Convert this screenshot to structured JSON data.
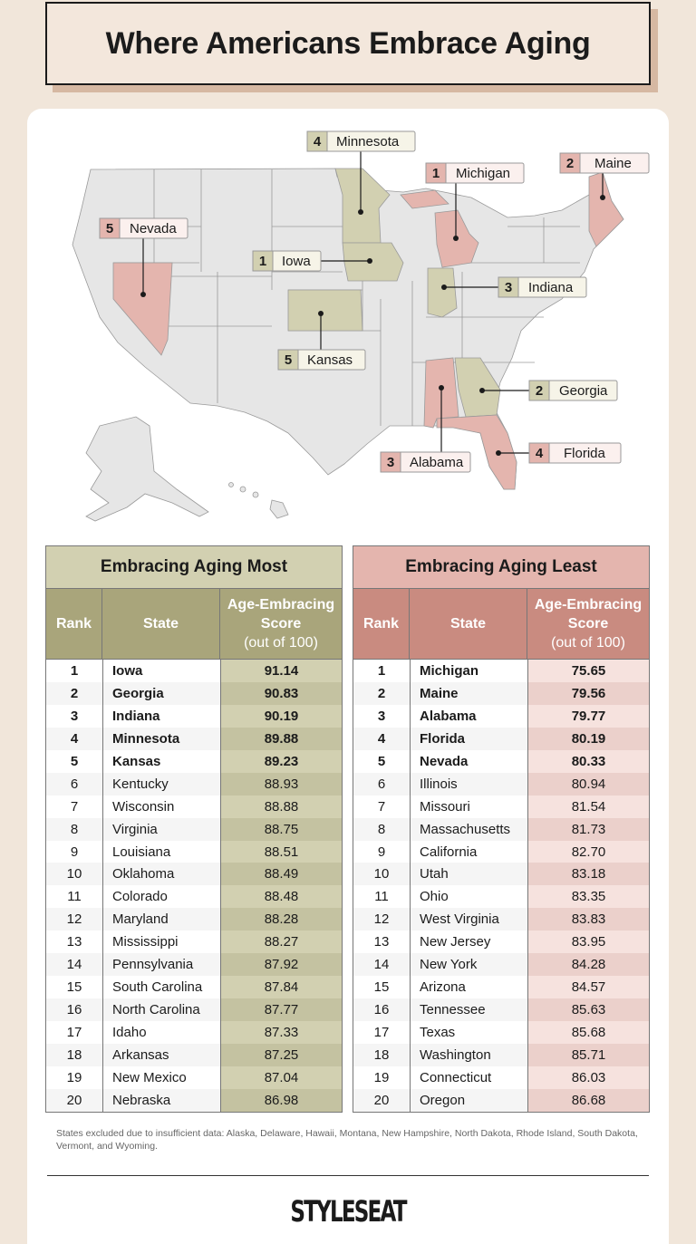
{
  "title": "Where Americans Embrace Aging",
  "colors": {
    "most": "#d2d0b1",
    "least": "#e4b5ae",
    "map_base": "#e6e6e6"
  },
  "map_labels": {
    "minnesota": {
      "rank": "4",
      "name": "Minnesota"
    },
    "michigan": {
      "rank": "1",
      "name": "Michigan"
    },
    "maine": {
      "rank": "2",
      "name": "Maine"
    },
    "nevada": {
      "rank": "5",
      "name": "Nevada"
    },
    "iowa": {
      "rank": "1",
      "name": "Iowa"
    },
    "indiana": {
      "rank": "3",
      "name": "Indiana"
    },
    "kansas": {
      "rank": "5",
      "name": "Kansas"
    },
    "georgia": {
      "rank": "2",
      "name": "Georgia"
    },
    "alabama": {
      "rank": "3",
      "name": "Alabama"
    },
    "florida": {
      "rank": "4",
      "name": "Florida"
    }
  },
  "most": {
    "title": "Embracing Aging Most",
    "headers": {
      "rank": "Rank",
      "state": "State",
      "score": "Age-Embracing Score",
      "score_sub": "(out of 100)"
    },
    "rows": [
      [
        "1",
        "Iowa",
        "91.14"
      ],
      [
        "2",
        "Georgia",
        "90.83"
      ],
      [
        "3",
        "Indiana",
        "90.19"
      ],
      [
        "4",
        "Minnesota",
        "89.88"
      ],
      [
        "5",
        "Kansas",
        "89.23"
      ],
      [
        "6",
        "Kentucky",
        "88.93"
      ],
      [
        "7",
        "Wisconsin",
        "88.88"
      ],
      [
        "8",
        "Virginia",
        "88.75"
      ],
      [
        "9",
        "Louisiana",
        "88.51"
      ],
      [
        "10",
        "Oklahoma",
        "88.49"
      ],
      [
        "11",
        "Colorado",
        "88.48"
      ],
      [
        "12",
        "Maryland",
        "88.28"
      ],
      [
        "13",
        "Mississippi",
        "88.27"
      ],
      [
        "14",
        "Pennsylvania",
        "87.92"
      ],
      [
        "15",
        "South Carolina",
        "87.84"
      ],
      [
        "16",
        "North Carolina",
        "87.77"
      ],
      [
        "17",
        "Idaho",
        "87.33"
      ],
      [
        "18",
        "Arkansas",
        "87.25"
      ],
      [
        "19",
        "New Mexico",
        "87.04"
      ],
      [
        "20",
        "Nebraska",
        "86.98"
      ]
    ]
  },
  "least": {
    "title": "Embracing Aging Least",
    "headers": {
      "rank": "Rank",
      "state": "State",
      "score": "Age-Embracing Score",
      "score_sub": "(out of 100)"
    },
    "rows": [
      [
        "1",
        "Michigan",
        "75.65"
      ],
      [
        "2",
        "Maine",
        "79.56"
      ],
      [
        "3",
        "Alabama",
        "79.77"
      ],
      [
        "4",
        "Florida",
        "80.19"
      ],
      [
        "5",
        "Nevada",
        "80.33"
      ],
      [
        "6",
        "Illinois",
        "80.94"
      ],
      [
        "7",
        "Missouri",
        "81.54"
      ],
      [
        "8",
        "Massachusetts",
        "81.73"
      ],
      [
        "9",
        "California",
        "82.70"
      ],
      [
        "10",
        "Utah",
        "83.18"
      ],
      [
        "11",
        "Ohio",
        "83.35"
      ],
      [
        "12",
        "West Virginia",
        "83.83"
      ],
      [
        "13",
        "New Jersey",
        "83.95"
      ],
      [
        "14",
        "New York",
        "84.28"
      ],
      [
        "15",
        "Arizona",
        "84.57"
      ],
      [
        "16",
        "Tennessee",
        "85.63"
      ],
      [
        "17",
        "Texas",
        "85.68"
      ],
      [
        "18",
        "Washington",
        "85.71"
      ],
      [
        "19",
        "Connecticut",
        "86.03"
      ],
      [
        "20",
        "Oregon",
        "86.68"
      ]
    ]
  },
  "footnote": "States excluded due to insufficient data: Alaska, Delaware, Hawaii, Montana, New Hampshire, North Dakota, Rhode Island, South Dakota, Vermont, and Wyoming.",
  "logo": "STYLESEAT"
}
